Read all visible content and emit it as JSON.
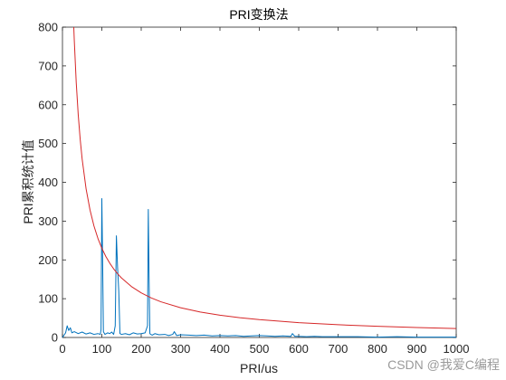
{
  "chart_data": {
    "type": "line",
    "title": "PRI变换法",
    "xlabel": "PRI/us",
    "ylabel": "PRI累积统计值",
    "xlim": [
      0,
      1000
    ],
    "ylim": [
      0,
      800
    ],
    "xticks": [
      0,
      100,
      200,
      300,
      400,
      500,
      600,
      700,
      800,
      900,
      1000
    ],
    "yticks": [
      0,
      100,
      200,
      300,
      400,
      500,
      600,
      700,
      800
    ],
    "grid": false,
    "legend": "none",
    "series": [
      {
        "color": "#0072BD",
        "x": [
          0,
          8,
          12,
          16,
          20,
          24,
          30,
          40,
          50,
          60,
          70,
          80,
          90,
          96,
          98,
          100,
          102,
          104,
          108,
          115,
          120,
          125,
          130,
          134,
          137,
          140,
          143,
          146,
          150,
          160,
          170,
          180,
          190,
          200,
          210,
          216,
          218,
          220,
          222,
          224,
          228,
          235,
          245,
          260,
          270,
          280,
          284,
          290,
          300,
          320,
          340,
          360,
          380,
          400,
          420,
          440,
          460,
          480,
          500,
          520,
          540,
          560,
          580,
          584,
          590,
          600,
          620,
          640,
          660,
          680,
          700,
          750,
          800,
          850,
          900,
          950,
          1000
        ],
        "y": [
          0,
          12,
          30,
          18,
          25,
          12,
          15,
          10,
          14,
          9,
          12,
          8,
          10,
          8,
          20,
          358,
          200,
          15,
          8,
          12,
          10,
          14,
          8,
          30,
          262,
          180,
          120,
          10,
          8,
          10,
          7,
          12,
          9,
          10,
          12,
          30,
          330,
          150,
          10,
          8,
          6,
          10,
          7,
          8,
          5,
          8,
          15,
          5,
          7,
          6,
          5,
          6,
          4,
          5,
          4,
          5,
          3,
          4,
          5,
          4,
          3,
          4,
          3,
          10,
          3,
          3,
          2,
          3,
          2,
          2,
          2,
          2,
          1,
          2,
          1,
          1,
          1
        ]
      },
      {
        "color": "#D62728",
        "function": "y = 23000 / x",
        "x": [
          28.75,
          30,
          35,
          40,
          45,
          50,
          60,
          70,
          80,
          90,
          100,
          110,
          120,
          130,
          140,
          150,
          175,
          200,
          225,
          250,
          300,
          350,
          400,
          450,
          500,
          600,
          700,
          800,
          900,
          1000
        ],
        "y": [
          800,
          766.7,
          657.1,
          575,
          511.1,
          460,
          383.3,
          328.6,
          287.5,
          255.6,
          230,
          209.1,
          191.7,
          176.9,
          164.3,
          153.3,
          131.4,
          115,
          102.2,
          92,
          76.7,
          65.7,
          57.5,
          51.1,
          46,
          38.3,
          32.9,
          28.8,
          25.6,
          23
        ]
      }
    ]
  },
  "watermark": "CSDN @我爱C编程"
}
